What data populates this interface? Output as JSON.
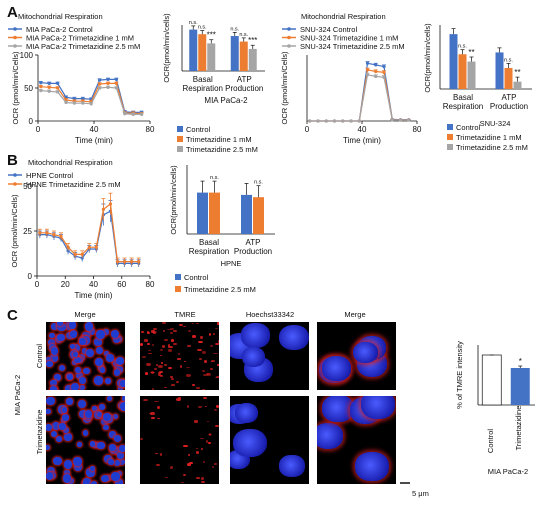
{
  "panels": {
    "a": "A",
    "b": "B",
    "c": "C"
  },
  "colors": {
    "control": "#4472c4",
    "tmz1": "#ed7d31",
    "tmz25": "#a5a5a5",
    "black": "#111111"
  },
  "panelA": {
    "mia_line": {
      "title": "Mitochondrial Respiration",
      "legend": [
        "MIA PaCa-2 Control",
        "MIA PaCa-2 Trimetazidine 1 mM",
        "MIA PaCa-2 Trimetazidine 2.5 mM"
      ],
      "ylabel": "OCR (pmol/min/Cells)",
      "xlabel": "Time  (min)",
      "xticks": [
        "0",
        "40",
        "80"
      ],
      "yticks": [
        "0",
        "50",
        "100"
      ]
    },
    "mia_bar": {
      "ylabel": "OCR(pmol/min/cells)",
      "categories": [
        "Basal Respiration",
        "ATP Production"
      ],
      "cat_lines": [
        [
          "Basal",
          "Respiration"
        ],
        [
          "ATP",
          "Production"
        ]
      ],
      "group": "MIA PaCa-2",
      "sig": [
        [
          "n.s.",
          "n.s.",
          "***"
        ],
        [
          "n.s.",
          "n.s.",
          "***"
        ]
      ]
    },
    "snu_line": {
      "title": "Mitochondrial Respiration",
      "legend": [
        "SNU-324 Control",
        "SNU-324 Trimetazidine 1 mM",
        "SNU-324 Trimetazidine 2.5 mM"
      ],
      "ylabel": "OCR (pmol/min/Cells)",
      "xlabel": "Time  (min)",
      "xticks": [
        "0",
        "40",
        "80"
      ]
    },
    "snu_bar": {
      "ylabel": "OCR(pmol/min/cells)",
      "categories": [
        "Basal Respiration",
        "ATP Production"
      ],
      "cat_lines": [
        [
          "Basal",
          "Respiration"
        ],
        [
          "ATP",
          "Production"
        ]
      ],
      "group": "SNU-324",
      "sig": [
        [
          "n.s.",
          "**"
        ],
        [
          "n.s.",
          "**"
        ]
      ]
    },
    "bar_legend": [
      "Control",
      "Trimetazidine 1 mM",
      "Trimetazidine 2.5 mM"
    ]
  },
  "panelB": {
    "title": "Mitochondrial Respiration",
    "legend": [
      "HPNE Control",
      "HPNE Trimetazidine 2.5 mM"
    ],
    "ylabel": "OCR (pmol/min/Cells)",
    "xlabel": "Time  (min)",
    "xticks": [
      "0",
      "20",
      "40",
      "60",
      "80"
    ],
    "yticks": [
      "0",
      "25",
      "50"
    ],
    "bar": {
      "ylabel": "OCR(pmol/min/cells)",
      "cat_lines": [
        [
          "Basal",
          "Respiration"
        ],
        [
          "ATP",
          "Production"
        ]
      ],
      "group": "HPNE",
      "sig": [
        "n.s.",
        "n.s."
      ],
      "legend": [
        "Control",
        "Trimetazidine 2.5 mM"
      ]
    }
  },
  "panelC": {
    "columns": [
      "Merge",
      "TMRE",
      "Hoechst33342",
      "Merge"
    ],
    "rows": [
      "Control",
      "Trimetazidine"
    ],
    "cell_line": "MIA PaCa-2",
    "scale": "5  μm",
    "bar": {
      "ylabel": "% of TMRE intensity",
      "categories": [
        "Control",
        "Trimetazidine"
      ],
      "sig": "*",
      "group": "MIA PaCa-2"
    }
  },
  "chart_data": [
    {
      "type": "line",
      "title": "Mitochondrial Respiration",
      "xlabel": "Time  (min)",
      "ylabel": "OCR (pmol/min/Cells)",
      "xlim": [
        0,
        80
      ],
      "ylim": [
        0,
        100
      ],
      "x": [
        2,
        8,
        14,
        20,
        26,
        32,
        38,
        44,
        50,
        56,
        62,
        68,
        74
      ],
      "series": [
        {
          "name": "MIA PaCa-2 Control",
          "values": [
            58,
            57,
            57,
            36,
            34,
            34,
            33,
            62,
            63,
            63,
            14,
            13,
            13
          ]
        },
        {
          "name": "MIA PaCa-2 Trimetazidine 1 mM",
          "values": [
            52,
            51,
            50,
            32,
            30,
            30,
            29,
            56,
            57,
            57,
            12,
            12,
            11
          ]
        },
        {
          "name": "MIA PaCa-2 Trimetazidine 2.5 mM",
          "values": [
            46,
            45,
            44,
            28,
            27,
            27,
            26,
            50,
            51,
            50,
            11,
            10,
            10
          ]
        }
      ]
    },
    {
      "type": "bar",
      "categories": [
        "Basal Respiration",
        "ATP Production"
      ],
      "xlabel": "MIA PaCa-2",
      "ylabel": "OCR(pmol/min/cells)",
      "ylim": [
        0,
        50
      ],
      "series": [
        {
          "name": "Control",
          "values": [
            45,
            38
          ]
        },
        {
          "name": "Trimetazidine 1 mM",
          "values": [
            40,
            32
          ]
        },
        {
          "name": "Trimetazidine 2.5 mM",
          "values": [
            30,
            24
          ]
        }
      ]
    },
    {
      "type": "line",
      "title": "Mitochondrial Respiration",
      "xlabel": "Time  (min)",
      "ylabel": "OCR (pmol/min/Cells)",
      "xlim": [
        0,
        80
      ],
      "ylim": [
        0,
        400
      ],
      "x": [
        2,
        8,
        14,
        20,
        26,
        32,
        38,
        44,
        50,
        56,
        62,
        68,
        74
      ],
      "series": [
        {
          "name": "SNU-324 Control",
          "values": [
            0,
            0,
            0,
            0,
            0,
            0,
            0,
            350,
            340,
            330,
            10,
            8,
            8
          ]
        },
        {
          "name": "SNU-324 Trimetazidine 1 mM",
          "values": [
            0,
            0,
            0,
            0,
            0,
            0,
            0,
            310,
            300,
            295,
            8,
            6,
            6
          ]
        },
        {
          "name": "SNU-324 Trimetazidine 2.5 mM",
          "values": [
            0,
            0,
            0,
            0,
            0,
            0,
            0,
            280,
            270,
            265,
            6,
            5,
            5
          ]
        }
      ]
    },
    {
      "type": "bar",
      "categories": [
        "Basal Respiration",
        "ATP Production"
      ],
      "xlabel": "SNU-324",
      "ylabel": "OCR(pmol/min/cells)",
      "ylim": [
        0,
        70
      ],
      "series": [
        {
          "name": "Control",
          "values": [
            60,
            40
          ]
        },
        {
          "name": "Trimetazidine 1 mM",
          "values": [
            38,
            23
          ]
        },
        {
          "name": "Trimetazidine 2.5 mM",
          "values": [
            30,
            8
          ]
        }
      ]
    },
    {
      "type": "line",
      "title": "Mitochondrial Respiration",
      "xlabel": "Time  (min)",
      "ylabel": "OCR (pmol/min/Cells)",
      "xlim": [
        0,
        80
      ],
      "ylim": [
        0,
        50
      ],
      "x": [
        2,
        7,
        12,
        17,
        22,
        27,
        32,
        37,
        42,
        47,
        52,
        57,
        62,
        67,
        72
      ],
      "series": [
        {
          "name": "HPNE Control",
          "values": [
            23,
            23,
            22,
            21,
            14,
            11,
            10,
            15,
            15,
            34,
            36,
            7,
            7,
            7,
            7
          ]
        },
        {
          "name": "HPNE Trimetazidine 2.5 mM",
          "values": [
            24,
            24,
            23,
            22,
            16,
            12,
            12,
            16,
            16,
            37,
            40,
            8,
            8,
            8,
            8
          ]
        }
      ]
    },
    {
      "type": "bar",
      "categories": [
        "Basal Respiration",
        "ATP Production"
      ],
      "xlabel": "HPNE",
      "ylabel": "OCR(pmol/min/cells)",
      "ylim": [
        0,
        30
      ],
      "series": [
        {
          "name": "Control",
          "values": [
            18,
            17
          ]
        },
        {
          "name": "Trimetazidine 2.5 mM",
          "values": [
            18,
            16
          ]
        }
      ]
    },
    {
      "type": "bar",
      "categories": [
        "Control",
        "Trimetazidine"
      ],
      "xlabel": "MIA PaCa-2",
      "ylabel": "% of TMRE intensity",
      "ylim": [
        0,
        120
      ],
      "values": [
        100,
        74
      ]
    }
  ]
}
